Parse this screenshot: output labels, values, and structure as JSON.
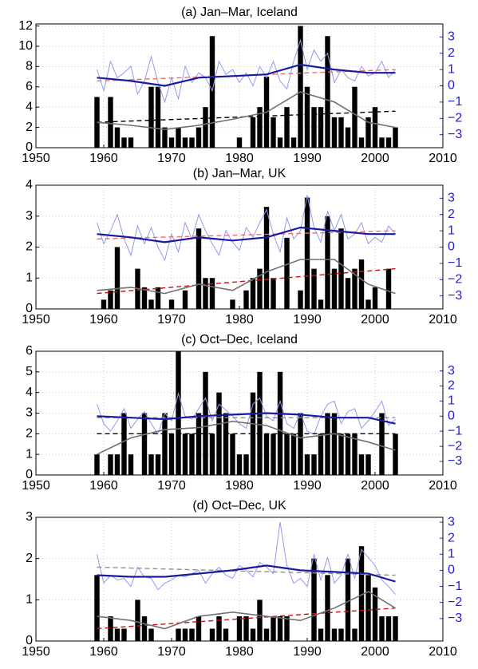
{
  "chart_data": [
    {
      "type": "bar",
      "title": "(a) Jan–Mar, Iceland",
      "xlim": [
        1950,
        2010
      ],
      "xticks": [
        1950,
        1960,
        1970,
        1980,
        1990,
        2000,
        2010
      ],
      "ylim": [
        0,
        12.2
      ],
      "yticks": [
        0,
        2,
        4,
        6,
        8,
        10,
        12
      ],
      "y2lim": [
        -3.8,
        3.8
      ],
      "y2ticks": [
        {
          "value": -3,
          "label": "−3"
        },
        {
          "value": -2,
          "label": "−2"
        },
        {
          "value": -1,
          "label": "−1"
        },
        0,
        1,
        2,
        3
      ],
      "grid": true,
      "x": [
        1959,
        1960,
        1961,
        1962,
        1963,
        1964,
        1965,
        1966,
        1967,
        1968,
        1969,
        1970,
        1971,
        1972,
        1973,
        1974,
        1975,
        1976,
        1977,
        1978,
        1979,
        1980,
        1981,
        1982,
        1983,
        1984,
        1985,
        1986,
        1987,
        1988,
        1989,
        1990,
        1991,
        1992,
        1993,
        1994,
        1995,
        1996,
        1997,
        1998,
        1999,
        2000,
        2001,
        2002,
        2003
      ],
      "series": [
        {
          "style": "bar",
          "color": "#000000",
          "values": [
            5,
            0,
            5,
            2,
            1,
            1,
            0,
            0,
            6,
            6,
            2,
            1,
            2,
            1,
            1,
            2,
            4,
            11,
            0,
            0,
            0,
            1,
            0,
            3,
            4,
            7,
            3,
            1,
            4,
            1,
            12,
            6,
            4,
            4,
            11,
            3,
            3,
            2,
            6,
            1,
            3,
            4,
            1,
            1,
            2
          ]
        },
        {
          "style": "thin",
          "axis": "y2",
          "color": "#8f9cf0",
          "values": [
            1.0,
            -0.3,
            1.5,
            0.5,
            0.8,
            1.2,
            -0.5,
            0.3,
            1.8,
            0.2,
            -1.0,
            0.5,
            -0.8,
            1.2,
            0.2,
            0.8,
            0.5,
            -0.3,
            1.5,
            0.7,
            1.0,
            0.2,
            0.8,
            0.0,
            1.2,
            0.5,
            1.5,
            0.3,
            -0.2,
            1.5,
            2.8,
            1.0,
            2.2,
            1.5,
            2.0,
            0.2,
            1.0,
            0.5,
            0.3,
            1.2,
            0.6,
            0.8,
            1.5,
            0.5,
            1.0
          ]
        },
        {
          "style": "dashed",
          "axis": "y2",
          "color": "#f07070",
          "x": [
            1959,
            2003
          ],
          "values": [
            0.3,
            1.0
          ]
        },
        {
          "style": "dashed",
          "color": "#000000",
          "x": [
            1959,
            2003
          ],
          "values": [
            2.5,
            3.6
          ]
        },
        {
          "style": "smooth",
          "color": "#707070",
          "x": [
            1959,
            1964,
            1969,
            1974,
            1979,
            1984,
            1989,
            1994,
            1999,
            2003
          ],
          "values": [
            2.5,
            2.2,
            1.8,
            2.2,
            2.8,
            3.5,
            5.5,
            4.5,
            2.5,
            2.0
          ]
        },
        {
          "style": "thick",
          "axis": "y2",
          "color": "#1a1aa0",
          "x": [
            1959,
            1964,
            1969,
            1974,
            1979,
            1984,
            1989,
            1994,
            1999,
            2003
          ],
          "values": [
            0.5,
            0.3,
            0.0,
            0.5,
            0.6,
            0.7,
            1.3,
            1.0,
            0.8,
            0.8
          ]
        }
      ]
    },
    {
      "type": "bar",
      "title": "(b) Jan–Mar, UK",
      "xlim": [
        1950,
        2010
      ],
      "xticks": [
        1950,
        1960,
        1970,
        1980,
        1990,
        2000,
        2010
      ],
      "ylim": [
        0,
        4
      ],
      "yticks": [
        0,
        1,
        2,
        3,
        4
      ],
      "y2lim": [
        -3.8,
        3.8
      ],
      "y2ticks": [
        {
          "value": -3,
          "label": "−3"
        },
        {
          "value": -2,
          "label": "−2"
        },
        {
          "value": -1,
          "label": "−1"
        },
        0,
        1,
        2,
        3
      ],
      "grid": true,
      "x": [
        1959,
        1960,
        1961,
        1962,
        1963,
        1964,
        1965,
        1966,
        1967,
        1968,
        1969,
        1970,
        1971,
        1972,
        1973,
        1974,
        1975,
        1976,
        1977,
        1978,
        1979,
        1980,
        1981,
        1982,
        1983,
        1984,
        1985,
        1986,
        1987,
        1988,
        1989,
        1990,
        1991,
        1992,
        1993,
        1994,
        1995,
        1996,
        1997,
        1998,
        1999,
        2000,
        2001,
        2002,
        2003
      ],
      "series": [
        {
          "style": "bar",
          "color": "#000000",
          "values": [
            0,
            0.3,
            0.6,
            2,
            0,
            0,
            1.3,
            0.7,
            0.3,
            0.7,
            0,
            0.3,
            0,
            0.6,
            0,
            2.6,
            1,
            1,
            0,
            0,
            0.3,
            0,
            0.6,
            1,
            1.3,
            3.3,
            1,
            0,
            2.3,
            0,
            0.6,
            3.6,
            1.3,
            0.3,
            3,
            1.3,
            2.6,
            1,
            1.3,
            1.6,
            0.3,
            0.7,
            0,
            1.3,
            0
          ]
        },
        {
          "style": "thin",
          "axis": "y2",
          "color": "#8f9cf0",
          "values": [
            1.5,
            0.2,
            1.0,
            2.0,
            0.5,
            -0.5,
            1.3,
            0.2,
            1.2,
            0.0,
            -0.8,
            0.8,
            -0.3,
            1.5,
            0.5,
            2.0,
            1.0,
            0.2,
            -0.5,
            1.0,
            0.3,
            -0.2,
            1.2,
            0.6,
            1.5,
            2.3,
            0.8,
            -0.3,
            1.8,
            0.5,
            1.0,
            3.2,
            1.2,
            0.3,
            2.2,
            1.0,
            2.0,
            0.5,
            0.8,
            1.5,
            0.2,
            0.6,
            0.3,
            1.3,
            0.8
          ]
        },
        {
          "style": "dashed",
          "axis": "y2",
          "color": "#f07070",
          "x": [
            1959,
            2003
          ],
          "values": [
            0.5,
            1.0
          ]
        },
        {
          "style": "dashed",
          "color": "#d01010",
          "x": [
            1959,
            2003
          ],
          "values": [
            0.5,
            1.3
          ]
        },
        {
          "style": "smooth",
          "color": "#707070",
          "x": [
            1959,
            1964,
            1969,
            1974,
            1979,
            1984,
            1989,
            1994,
            1999,
            2003
          ],
          "values": [
            0.6,
            0.7,
            0.5,
            0.8,
            0.6,
            1.2,
            1.6,
            1.6,
            0.8,
            0.5
          ]
        },
        {
          "style": "thick",
          "axis": "y2",
          "color": "#1a1aa0",
          "x": [
            1959,
            1964,
            1969,
            1974,
            1979,
            1984,
            1989,
            1994,
            1999,
            2003
          ],
          "values": [
            0.8,
            0.6,
            0.3,
            0.6,
            0.4,
            0.6,
            1.2,
            1.0,
            0.8,
            0.8
          ]
        }
      ]
    },
    {
      "type": "bar",
      "title": "(c) Oct–Dec, Iceland",
      "xlim": [
        1950,
        2010
      ],
      "xticks": [
        1950,
        1960,
        1970,
        1980,
        1990,
        2000,
        2010
      ],
      "ylim": [
        0,
        6
      ],
      "yticks": [
        0,
        1,
        2,
        3,
        4,
        5,
        6
      ],
      "y2lim": [
        -3.9,
        4.3
      ],
      "y2ticks": [
        {
          "value": -3,
          "label": "−3"
        },
        {
          "value": -2,
          "label": "−2"
        },
        {
          "value": -1,
          "label": "−1"
        },
        0,
        1,
        2,
        3
      ],
      "grid": true,
      "x": [
        1959,
        1960,
        1961,
        1962,
        1963,
        1964,
        1965,
        1966,
        1967,
        1968,
        1969,
        1970,
        1971,
        1972,
        1973,
        1974,
        1975,
        1976,
        1977,
        1978,
        1979,
        1980,
        1981,
        1982,
        1983,
        1984,
        1985,
        1986,
        1987,
        1988,
        1989,
        1990,
        1991,
        1992,
        1993,
        1994,
        1995,
        1996,
        1997,
        1998,
        1999,
        2000,
        2001,
        2002,
        2003
      ],
      "series": [
        {
          "style": "bar",
          "color": "#000000",
          "values": [
            1,
            0,
            1,
            1,
            3,
            1,
            0,
            3,
            1,
            1,
            3,
            2,
            6,
            2,
            2,
            3,
            5,
            2,
            4,
            3,
            2,
            1,
            1,
            4,
            5,
            2,
            2,
            5,
            2,
            2,
            3,
            1,
            1,
            2,
            3,
            3,
            2,
            2,
            2,
            1,
            1,
            0,
            3,
            0,
            2
          ]
        },
        {
          "style": "thin",
          "axis": "y2",
          "color": "#8f9cf0",
          "values": [
            0.8,
            -0.5,
            -1.0,
            -0.3,
            0.5,
            -0.8,
            -0.2,
            0.3,
            -0.5,
            -1.2,
            0.2,
            -0.3,
            1.5,
            0.0,
            -0.2,
            0.5,
            1.2,
            -0.3,
            0.8,
            0.4,
            0.0,
            -0.5,
            -0.8,
            0.8,
            1.2,
            0.0,
            -0.3,
            1.0,
            -0.5,
            -0.8,
            0.2,
            -1.0,
            -1.2,
            0.0,
            0.8,
            1.0,
            -0.5,
            0.3,
            0.5,
            -0.8,
            -0.3,
            0.3,
            1.0,
            -0.6,
            -0.2
          ]
        },
        {
          "style": "dashed",
          "axis": "y2",
          "color": "#909090",
          "x": [
            1959,
            2003
          ],
          "values": [
            -0.1,
            -0.1
          ]
        },
        {
          "style": "dashed",
          "color": "#000000",
          "x": [
            1959,
            2003
          ],
          "values": [
            2,
            2
          ]
        },
        {
          "style": "smooth",
          "color": "#707070",
          "x": [
            1959,
            1964,
            1969,
            1974,
            1979,
            1984,
            1989,
            1994,
            1999,
            2003
          ],
          "values": [
            1.0,
            1.8,
            2.2,
            2.3,
            2.6,
            2.4,
            1.8,
            2.0,
            1.6,
            1.2
          ]
        },
        {
          "style": "thick",
          "axis": "y2",
          "color": "#1a1aa0",
          "x": [
            1959,
            1964,
            1969,
            1974,
            1979,
            1984,
            1989,
            1994,
            1999,
            2003
          ],
          "values": [
            0.0,
            -0.1,
            -0.2,
            0.0,
            0.1,
            0.2,
            0.1,
            -0.1,
            -0.1,
            -0.5
          ]
        }
      ]
    },
    {
      "type": "bar",
      "title": "(d) Oct–Dec, UK",
      "xlim": [
        1950,
        2010
      ],
      "xticks": [
        1950,
        1960,
        1970,
        1980,
        1990,
        2000,
        2010
      ],
      "ylim": [
        0,
        3
      ],
      "yticks": [
        0,
        1,
        2,
        3
      ],
      "y2lim": [
        -4.4,
        3.3
      ],
      "y2ticks": [
        {
          "value": -3,
          "label": "−3"
        },
        {
          "value": -2,
          "label": "−2"
        },
        {
          "value": -1,
          "label": "−1"
        },
        0,
        1,
        2,
        3
      ],
      "grid": true,
      "x": [
        1959,
        1960,
        1961,
        1962,
        1963,
        1964,
        1965,
        1966,
        1967,
        1968,
        1969,
        1970,
        1971,
        1972,
        1973,
        1974,
        1975,
        1976,
        1977,
        1978,
        1979,
        1980,
        1981,
        1982,
        1983,
        1984,
        1985,
        1986,
        1987,
        1988,
        1989,
        1990,
        1991,
        1992,
        1993,
        1994,
        1995,
        1996,
        1997,
        1998,
        1999,
        2000,
        2001,
        2002,
        2003
      ],
      "series": [
        {
          "style": "bar",
          "color": "#000000",
          "values": [
            1.6,
            0,
            0.6,
            0.3,
            0.3,
            0,
            1,
            0.6,
            0.3,
            0,
            0,
            0,
            0.3,
            0.3,
            0.3,
            0.6,
            0,
            0.3,
            0.6,
            0.3,
            0,
            0.6,
            0.6,
            0.3,
            1,
            0.3,
            0.6,
            0.6,
            0.6,
            0,
            0,
            0,
            2,
            0.3,
            1.6,
            0.3,
            0.3,
            2,
            0.3,
            2.3,
            1.6,
            1.3,
            0.6,
            0.6,
            0.6
          ]
        },
        {
          "style": "thin",
          "axis": "y2",
          "color": "#8f9cf0",
          "values": [
            1.0,
            -0.8,
            -0.3,
            -0.6,
            -0.5,
            -1.0,
            0.2,
            -0.4,
            -0.5,
            -1.2,
            -0.8,
            -0.6,
            -0.3,
            -0.4,
            -0.2,
            0.0,
            -0.8,
            -0.2,
            0.2,
            -0.3,
            -0.5,
            0.3,
            0.0,
            -0.4,
            0.5,
            0.2,
            -0.2,
            3.0,
            0.3,
            -0.8,
            -0.5,
            -1.0,
            1.0,
            -0.6,
            0.8,
            -0.8,
            -0.3,
            1.0,
            -0.5,
            1.3,
            0.8,
            0.3,
            -0.6,
            -1.0,
            -1.5
          ]
        },
        {
          "style": "dashed",
          "axis": "y2",
          "color": "#909090",
          "x": [
            1959,
            2003
          ],
          "values": [
            0.2,
            -0.3
          ]
        },
        {
          "style": "dashed",
          "color": "#d01010",
          "x": [
            1959,
            2003
          ],
          "values": [
            0.3,
            0.8
          ]
        },
        {
          "style": "smooth",
          "color": "#707070",
          "x": [
            1959,
            1964,
            1969,
            1974,
            1979,
            1984,
            1989,
            1994,
            1999,
            2003
          ],
          "values": [
            0.6,
            0.5,
            0.3,
            0.6,
            0.7,
            0.6,
            0.5,
            0.8,
            1.2,
            0.8
          ]
        },
        {
          "style": "thick",
          "axis": "y2",
          "color": "#1a1aa0",
          "x": [
            1959,
            1964,
            1969,
            1974,
            1979,
            1984,
            1989,
            1994,
            1999,
            2003
          ],
          "values": [
            -0.3,
            -0.4,
            -0.4,
            -0.2,
            0.0,
            0.3,
            0.0,
            -0.1,
            -0.2,
            -0.7
          ]
        }
      ]
    }
  ]
}
